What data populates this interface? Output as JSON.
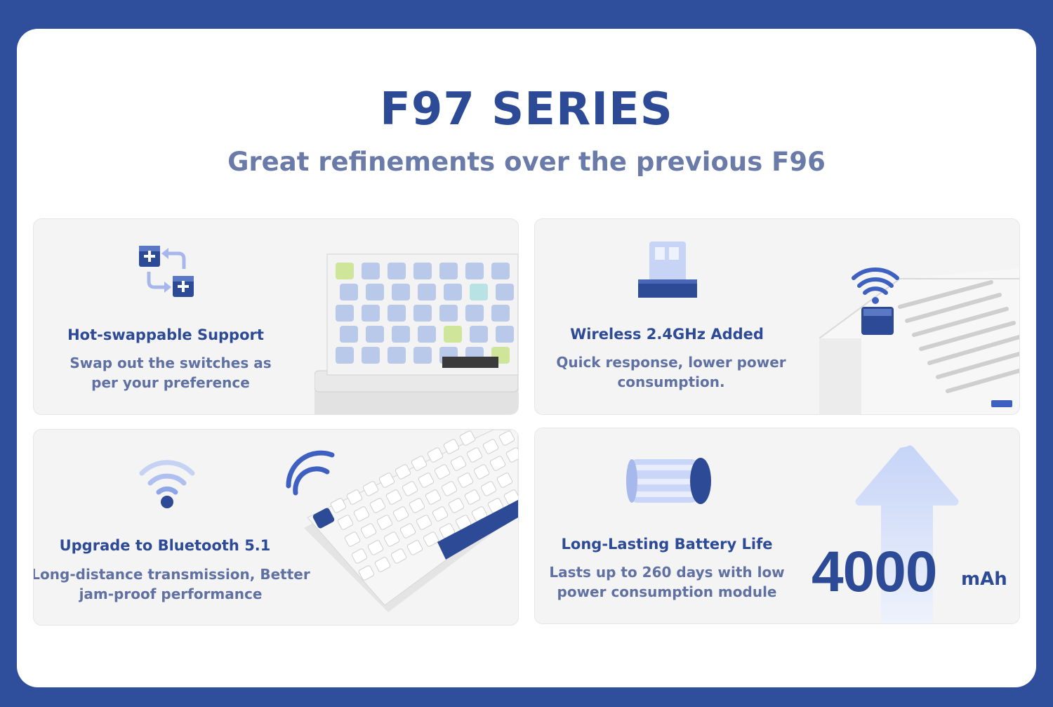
{
  "header": {
    "title": "F97 SERIES",
    "subtitle": "Great refinements over the previous F96"
  },
  "features": [
    {
      "title": "Hot-swappable Support",
      "description_line1": "Swap out the switches as",
      "description_line2": "per your preference",
      "icon": "swap-icon"
    },
    {
      "title": "Wireless 2.4GHz Added",
      "description_line1": "Quick response, lower power",
      "description_line2": "consumption.",
      "icon": "usb-receiver-icon"
    },
    {
      "title": "Upgrade to Bluetooth 5.1",
      "description_line1": "Long-distance transmission, Better",
      "description_line2": "jam-proof performance",
      "icon": "bluetooth-signal-icon"
    },
    {
      "title": "Long-Lasting Battery Life",
      "description_line1": "Lasts up to 260 days with low",
      "description_line2": "power consumption module",
      "icon": "battery-icon"
    }
  ],
  "battery": {
    "capacity": "4000",
    "unit": "mAh"
  },
  "colors": {
    "frame": "#2f4f9c",
    "accent": "#2c4a96",
    "muted": "#6a7ba9"
  }
}
